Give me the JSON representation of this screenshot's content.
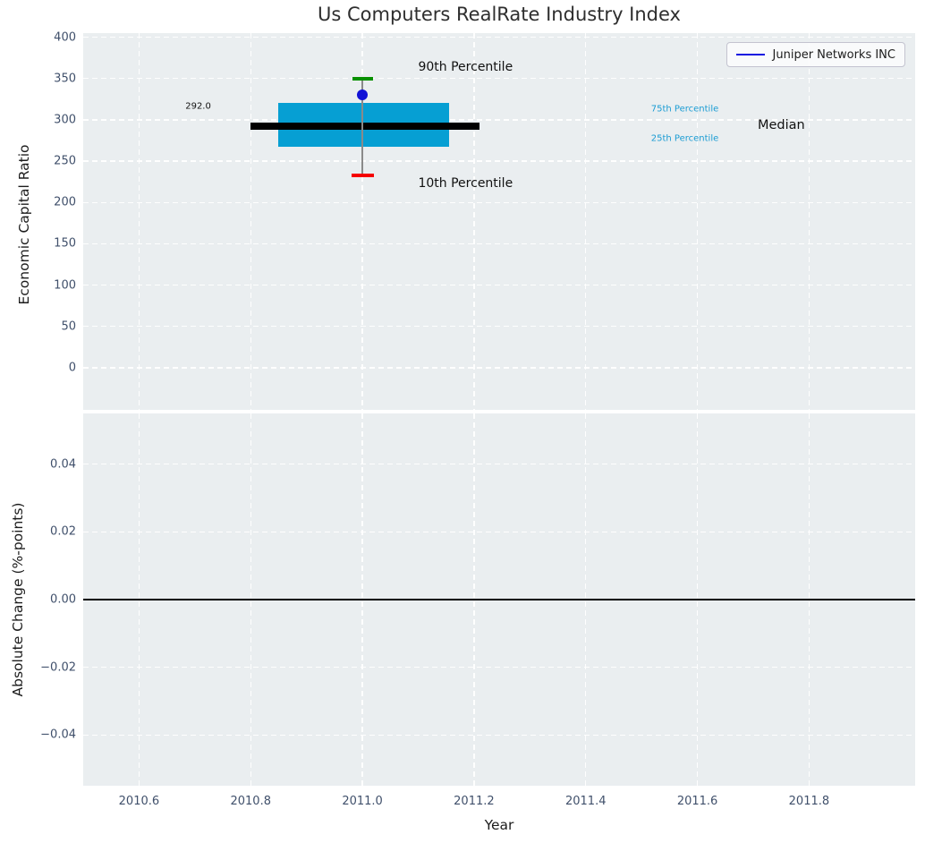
{
  "style": {
    "panel_bg": "#eaeef0",
    "grid_color": "#ffffff",
    "tick_label_color": "#40506b",
    "axis_label_color": "#1c1c1c",
    "title_color": "#2e2e2e",
    "box_fill": "#069fd3",
    "median_color": "#000000",
    "whisker_color": "#8a8a8a",
    "p90_cap_color": "#089000",
    "p10_cap_color": "#f50000",
    "point_color": "#1212d6",
    "legend_line_color": "#1111e0",
    "zero_line_color": "#000000",
    "percentile_label_color": "#1b9cd3",
    "annotation_color": "#111111"
  },
  "chart_data": [
    {
      "type": "box",
      "title": "Us Computers RealRate Industry Index",
      "ylabel": "Economic Capital Ratio",
      "xlim": [
        2010.5,
        2011.99
      ],
      "ylim": [
        -51,
        405
      ],
      "xticks": [
        2010.6,
        2010.8,
        2011.0,
        2011.2,
        2011.4,
        2011.6,
        2011.8
      ],
      "yticks": [
        400,
        350,
        300,
        250,
        200,
        150,
        100,
        50,
        0
      ],
      "ytick_labels": [
        "400",
        "350",
        "300",
        "250",
        "200",
        "150",
        "100",
        "50",
        "0"
      ],
      "grid": true,
      "legend": {
        "label": "Juniper Networks INC",
        "position": "upper right"
      },
      "box": {
        "x_center": 2011.0,
        "box_x_range": [
          2010.85,
          2011.155
        ],
        "median_x_range": [
          2010.8,
          2011.21
        ],
        "median": 292.0,
        "median_label": "292.0",
        "q25": 267,
        "q75": 320,
        "p10": 233,
        "p90": 350
      },
      "company_point": {
        "name": "Juniper Networks INC",
        "x": 2011.0,
        "y": 330
      },
      "annotations": [
        {
          "text": "90th Percentile",
          "x": 2011.1,
          "y": 364,
          "size": 14,
          "color_key": "annotation_color"
        },
        {
          "text": "10th Percentile",
          "x": 2011.1,
          "y": 223,
          "size": 14,
          "color_key": "annotation_color"
        },
        {
          "text": "292.0",
          "x": 2010.683,
          "y": 316,
          "size": 10,
          "color_key": "annotation_color"
        },
        {
          "text": "75th Percentile",
          "x": 2011.517,
          "y": 313,
          "size": 10,
          "color_key": "percentile_label_color"
        },
        {
          "text": "25th Percentile",
          "x": 2011.517,
          "y": 277,
          "size": 10,
          "color_key": "percentile_label_color"
        },
        {
          "text": "Median",
          "x": 2011.708,
          "y": 293,
          "size": 14.5,
          "color_key": "annotation_color"
        }
      ]
    },
    {
      "type": "line",
      "ylabel": "Absolute Change (%-points)",
      "xlabel": "Year",
      "xlim": [
        2010.5,
        2011.99
      ],
      "ylim": [
        -0.055,
        0.055
      ],
      "xticks": [
        2010.6,
        2010.8,
        2011.0,
        2011.2,
        2011.4,
        2011.6,
        2011.8
      ],
      "xtick_labels": [
        "2010.6",
        "2010.8",
        "2011.0",
        "2011.2",
        "2011.4",
        "2011.6",
        "2011.8"
      ],
      "yticks": [
        0.04,
        0.02,
        0.0,
        -0.02,
        -0.04
      ],
      "ytick_labels": [
        "0.04",
        "0.02",
        "0.00",
        "−0.02",
        "−0.04"
      ],
      "grid": true,
      "zero_line": 0.0
    }
  ]
}
